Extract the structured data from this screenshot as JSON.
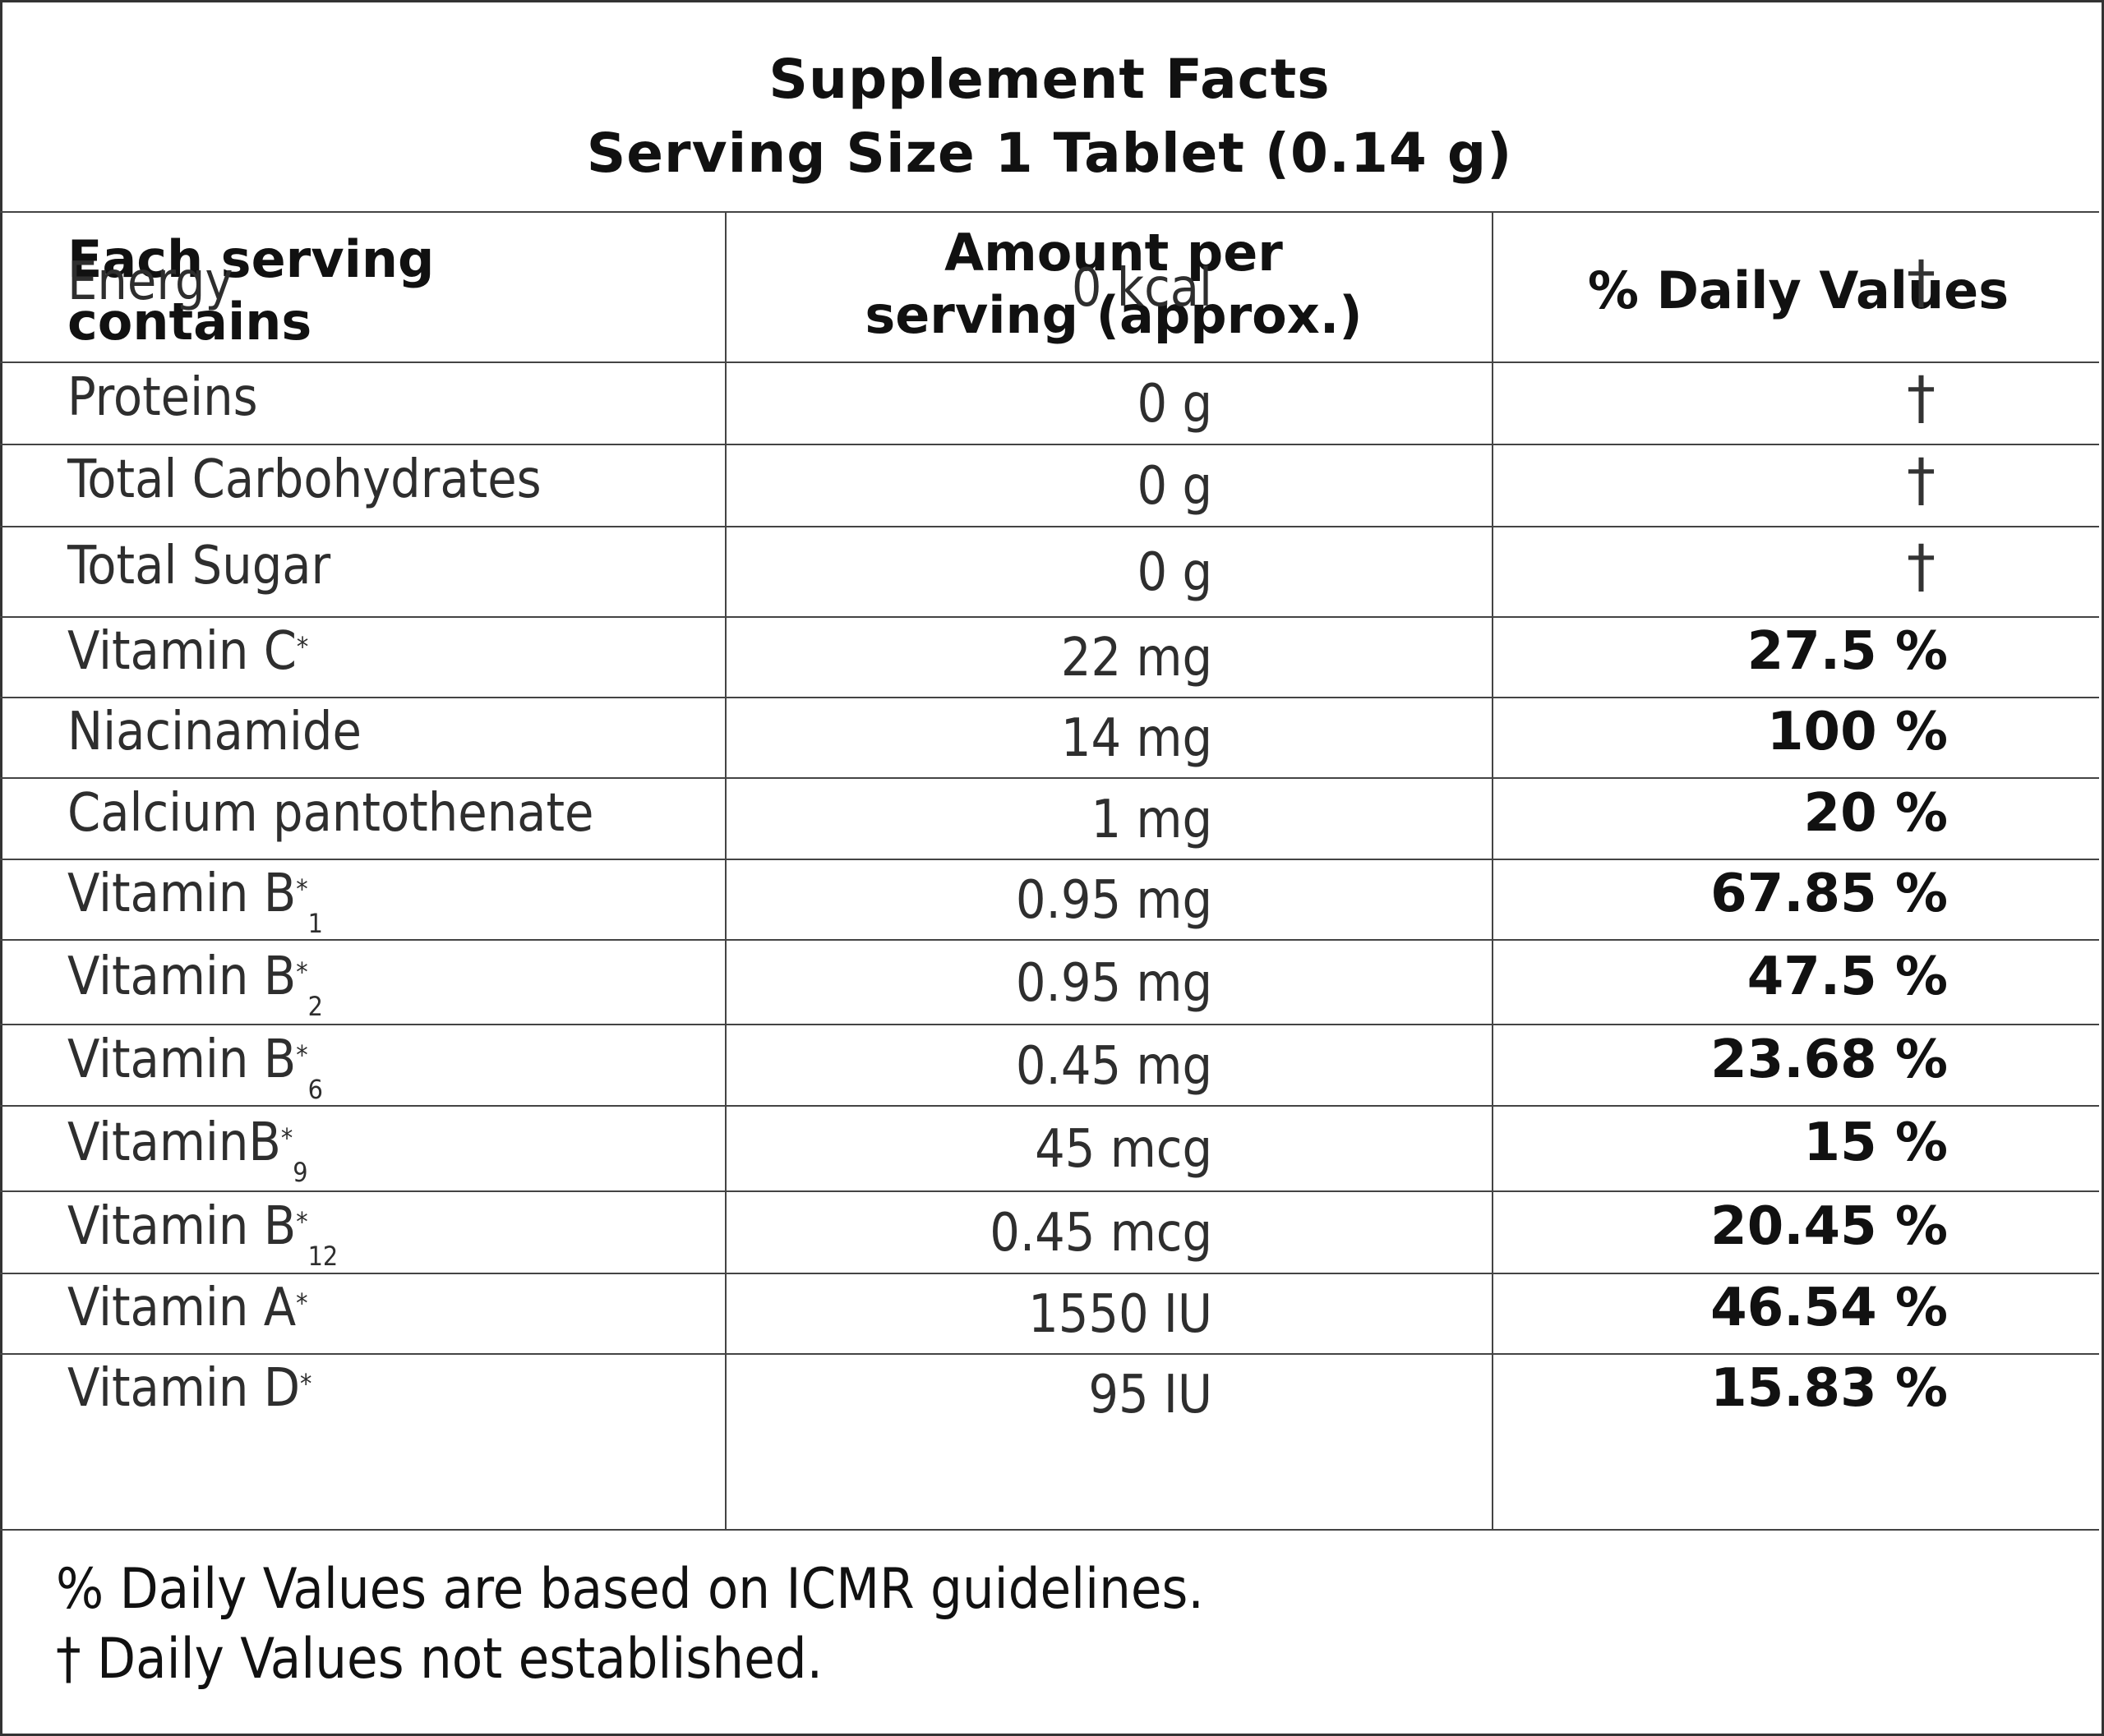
{
  "header": {
    "title": "Supplement Facts",
    "serving_size": "Serving Size 1 Tablet (0.14 g)"
  },
  "columns": {
    "c1_line1": "Each serving",
    "c1_line2": "contains",
    "c2_line1": "Amount per",
    "c2_line2": "serving (approx.)",
    "c3": "% Daily Values"
  },
  "rows": [
    {
      "name": "Energy",
      "sup": "",
      "sub": "",
      "amount": "0 kcal",
      "dv": "†"
    },
    {
      "name": "Proteins",
      "sup": "",
      "sub": "",
      "amount": "0 g",
      "dv": "†"
    },
    {
      "name": "Total Carbohydrates",
      "sup": "",
      "sub": "",
      "amount": "0 g",
      "dv": "†"
    },
    {
      "name": "Total Sugar",
      "sup": "",
      "sub": "",
      "amount": "0 g",
      "dv": "†"
    },
    {
      "name": "Vitamin C",
      "sup": "*",
      "sub": "",
      "amount": "22 mg",
      "dv": "27.5 %"
    },
    {
      "name": "Niacinamide",
      "sup": "",
      "sub": "",
      "amount": "14 mg",
      "dv": "100 %"
    },
    {
      "name": "Calcium pantothenate",
      "sup": "",
      "sub": "",
      "amount": "1 mg",
      "dv": "20 %"
    },
    {
      "name": "Vitamin B",
      "sup": "*",
      "sub": "1",
      "amount": "0.95 mg",
      "dv": "67.85 %"
    },
    {
      "name": "Vitamin B",
      "sup": "*",
      "sub": "2",
      "amount": "0.95 mg",
      "dv": "47.5 %"
    },
    {
      "name": "Vitamin B",
      "sup": "*",
      "sub": "6",
      "amount": "0.45 mg",
      "dv": "23.68 %"
    },
    {
      "name": "VitaminB",
      "sup": "*",
      "sub": "9",
      "amount": "45 mcg",
      "dv": "15 %"
    },
    {
      "name": "Vitamin B",
      "sup": "*",
      "sub": "12",
      "amount": "0.45 mcg",
      "dv": "20.45 %"
    },
    {
      "name": "Vitamin A",
      "sup": "*",
      "sub": "",
      "amount": "1550 IU",
      "dv": "46.54 %"
    },
    {
      "name": "Vitamin D",
      "sup": "*",
      "sub": "",
      "amount": "95 IU",
      "dv": "15.83 %"
    }
  ],
  "footer": {
    "line1": "% Daily Values are based on ICMR guidelines.",
    "line2": "† Daily Values not established."
  }
}
